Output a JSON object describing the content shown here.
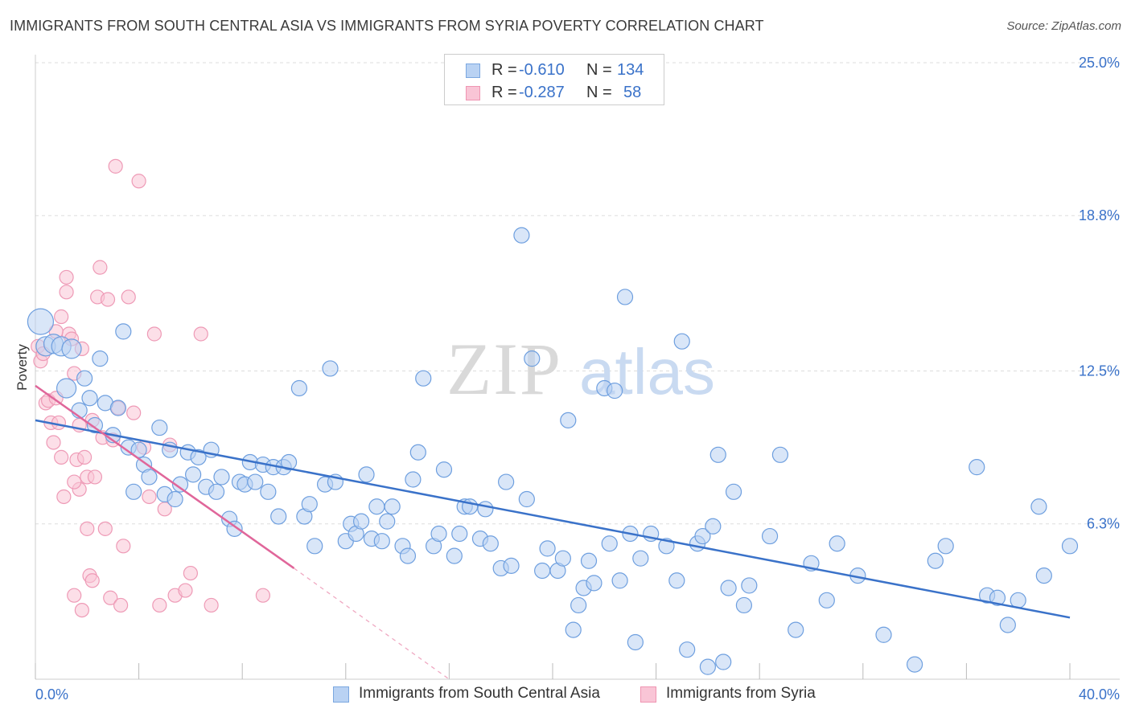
{
  "title": "IMMIGRANTS FROM SOUTH CENTRAL ASIA VS IMMIGRANTS FROM SYRIA POVERTY CORRELATION CHART",
  "source": "Source: ZipAtlas.com",
  "watermark": {
    "zip": "ZIP",
    "atlas": "atlas"
  },
  "legend": {
    "rows": [
      {
        "r_label": "R =",
        "r_value": "-0.610",
        "n_label": "N =",
        "n_value": "134",
        "fill": "#b9d2f3",
        "stroke": "#7ba7e0"
      },
      {
        "r_label": "R =",
        "r_value": "-0.287",
        "n_label": "N =",
        "n_value": "58",
        "fill": "#f9c5d6",
        "stroke": "#ef95b2"
      }
    ]
  },
  "bottom_legend": [
    {
      "label": "Immigrants from South Central Asia",
      "fill": "#b9d2f3",
      "stroke": "#7ba7e0"
    },
    {
      "label": "Immigrants from Syria",
      "fill": "#f9c5d6",
      "stroke": "#ef95b2"
    }
  ],
  "chart_data": {
    "type": "scatter",
    "ylabel": "Poverty",
    "xlim": [
      0,
      40
    ],
    "ylim": [
      0,
      25
    ],
    "x_tick_labels": [
      {
        "value": 0,
        "label": "0.0%"
      },
      {
        "value": 40,
        "label": "40.0%"
      }
    ],
    "y_tick_labels": [
      {
        "value": 6.3,
        "label": "6.3%"
      },
      {
        "value": 12.5,
        "label": "12.5%"
      },
      {
        "value": 18.8,
        "label": "18.8%"
      },
      {
        "value": 25.0,
        "label": "25.0%"
      }
    ],
    "colors": {
      "blue": "#3a72c9",
      "pink": "#e0669a",
      "blue_fill": "#b9d2f3",
      "pink_fill": "#f9c5d6"
    },
    "series": [
      {
        "name": "Immigrants from South Central Asia",
        "trend": {
          "x0": 0,
          "y0": 10.5,
          "x1": 40,
          "y1": 2.5
        },
        "points": [
          [
            0.2,
            14.5
          ],
          [
            0.4,
            13.5
          ],
          [
            0.7,
            13.6
          ],
          [
            1.0,
            13.5
          ],
          [
            1.2,
            11.8
          ],
          [
            1.4,
            13.4
          ],
          [
            1.7,
            10.9
          ],
          [
            1.9,
            12.2
          ],
          [
            2.1,
            11.4
          ],
          [
            2.3,
            10.3
          ],
          [
            2.5,
            13.0
          ],
          [
            2.7,
            11.2
          ],
          [
            3.0,
            9.9
          ],
          [
            3.2,
            11.0
          ],
          [
            3.4,
            14.1
          ],
          [
            3.6,
            9.4
          ],
          [
            3.8,
            7.6
          ],
          [
            4.0,
            9.3
          ],
          [
            4.2,
            8.7
          ],
          [
            4.4,
            8.2
          ],
          [
            4.8,
            10.2
          ],
          [
            5.0,
            7.5
          ],
          [
            5.2,
            9.3
          ],
          [
            5.4,
            7.3
          ],
          [
            5.6,
            7.9
          ],
          [
            5.9,
            9.2
          ],
          [
            6.1,
            8.3
          ],
          [
            6.3,
            9.0
          ],
          [
            6.6,
            7.8
          ],
          [
            6.8,
            9.3
          ],
          [
            7.0,
            7.6
          ],
          [
            7.2,
            8.2
          ],
          [
            7.5,
            6.5
          ],
          [
            7.7,
            6.1
          ],
          [
            7.9,
            8.0
          ],
          [
            8.1,
            7.9
          ],
          [
            8.3,
            8.8
          ],
          [
            8.5,
            8.0
          ],
          [
            8.8,
            8.7
          ],
          [
            9.0,
            7.6
          ],
          [
            9.2,
            8.6
          ],
          [
            9.4,
            6.6
          ],
          [
            9.6,
            8.6
          ],
          [
            9.8,
            8.8
          ],
          [
            10.2,
            11.8
          ],
          [
            10.4,
            6.6
          ],
          [
            10.6,
            7.1
          ],
          [
            10.8,
            5.4
          ],
          [
            11.2,
            7.9
          ],
          [
            11.4,
            12.6
          ],
          [
            11.6,
            8.0
          ],
          [
            12.0,
            5.6
          ],
          [
            12.2,
            6.3
          ],
          [
            12.4,
            5.9
          ],
          [
            12.6,
            6.4
          ],
          [
            12.8,
            8.3
          ],
          [
            13.0,
            5.7
          ],
          [
            13.2,
            7.0
          ],
          [
            13.4,
            5.6
          ],
          [
            13.6,
            6.4
          ],
          [
            13.8,
            7.0
          ],
          [
            14.2,
            5.4
          ],
          [
            14.4,
            5.0
          ],
          [
            14.6,
            8.1
          ],
          [
            14.8,
            9.2
          ],
          [
            15.0,
            12.2
          ],
          [
            15.4,
            5.4
          ],
          [
            15.6,
            5.9
          ],
          [
            15.8,
            8.5
          ],
          [
            16.2,
            5.0
          ],
          [
            16.4,
            5.9
          ],
          [
            16.6,
            7.0
          ],
          [
            16.8,
            7.0
          ],
          [
            17.2,
            5.7
          ],
          [
            17.4,
            6.9
          ],
          [
            17.6,
            5.5
          ],
          [
            18.0,
            4.5
          ],
          [
            18.2,
            8.0
          ],
          [
            18.4,
            4.6
          ],
          [
            18.8,
            18.0
          ],
          [
            19.0,
            7.3
          ],
          [
            19.2,
            13.0
          ],
          [
            19.6,
            4.4
          ],
          [
            19.8,
            5.3
          ],
          [
            20.2,
            4.4
          ],
          [
            20.4,
            4.9
          ],
          [
            20.6,
            10.5
          ],
          [
            20.8,
            2.0
          ],
          [
            21.0,
            3.0
          ],
          [
            21.2,
            3.7
          ],
          [
            21.4,
            4.8
          ],
          [
            21.6,
            3.9
          ],
          [
            22.0,
            11.8
          ],
          [
            22.2,
            5.5
          ],
          [
            22.4,
            11.7
          ],
          [
            22.6,
            4.0
          ],
          [
            22.8,
            15.5
          ],
          [
            23.0,
            5.9
          ],
          [
            23.2,
            1.5
          ],
          [
            23.4,
            4.9
          ],
          [
            23.8,
            5.9
          ],
          [
            24.4,
            5.4
          ],
          [
            24.8,
            4.0
          ],
          [
            25.0,
            13.7
          ],
          [
            25.2,
            1.2
          ],
          [
            25.6,
            5.5
          ],
          [
            25.8,
            5.8
          ],
          [
            26.0,
            0.5
          ],
          [
            26.2,
            6.2
          ],
          [
            26.4,
            9.1
          ],
          [
            26.6,
            0.7
          ],
          [
            26.8,
            3.7
          ],
          [
            27.0,
            7.6
          ],
          [
            27.4,
            3.0
          ],
          [
            27.6,
            3.8
          ],
          [
            28.4,
            5.8
          ],
          [
            28.8,
            9.1
          ],
          [
            29.4,
            2.0
          ],
          [
            30.0,
            4.7
          ],
          [
            30.6,
            3.2
          ],
          [
            31.0,
            5.5
          ],
          [
            31.8,
            4.2
          ],
          [
            32.8,
            1.8
          ],
          [
            34.0,
            0.6
          ],
          [
            34.8,
            4.8
          ],
          [
            35.2,
            5.4
          ],
          [
            36.4,
            8.6
          ],
          [
            36.8,
            3.4
          ],
          [
            37.2,
            3.3
          ],
          [
            37.6,
            2.2
          ],
          [
            38.0,
            3.2
          ],
          [
            38.8,
            7.0
          ],
          [
            39.0,
            4.2
          ],
          [
            40.0,
            5.4
          ]
        ]
      },
      {
        "name": "Immigrants from Syria",
        "trend": {
          "x0": 0,
          "y0": 11.9,
          "x1": 10,
          "y1": 4.5,
          "dash_x1": 16,
          "dash_y1": 0
        },
        "points": [
          [
            0.1,
            13.5
          ],
          [
            0.2,
            12.9
          ],
          [
            0.3,
            13.2
          ],
          [
            0.4,
            11.2
          ],
          [
            0.5,
            11.3
          ],
          [
            0.6,
            10.4
          ],
          [
            0.7,
            9.6
          ],
          [
            0.8,
            11.4
          ],
          [
            0.9,
            10.4
          ],
          [
            1.0,
            9.0
          ],
          [
            1.0,
            14.7
          ],
          [
            1.1,
            7.4
          ],
          [
            1.2,
            16.3
          ],
          [
            1.2,
            15.7
          ],
          [
            1.3,
            14.0
          ],
          [
            1.4,
            13.8
          ],
          [
            1.5,
            12.4
          ],
          [
            1.5,
            3.4
          ],
          [
            1.6,
            8.9
          ],
          [
            1.7,
            10.3
          ],
          [
            1.7,
            7.7
          ],
          [
            1.8,
            13.4
          ],
          [
            1.8,
            2.8
          ],
          [
            1.9,
            9.0
          ],
          [
            2.0,
            6.1
          ],
          [
            2.0,
            8.2
          ],
          [
            2.1,
            4.2
          ],
          [
            2.2,
            10.5
          ],
          [
            2.3,
            8.2
          ],
          [
            2.4,
            15.5
          ],
          [
            2.5,
            16.7
          ],
          [
            2.6,
            9.8
          ],
          [
            2.7,
            6.1
          ],
          [
            2.8,
            15.4
          ],
          [
            2.9,
            3.3
          ],
          [
            3.0,
            9.7
          ],
          [
            3.1,
            20.8
          ],
          [
            3.2,
            11.0
          ],
          [
            3.3,
            3.0
          ],
          [
            3.4,
            5.4
          ],
          [
            3.6,
            15.5
          ],
          [
            3.8,
            10.8
          ],
          [
            4.0,
            20.2
          ],
          [
            4.2,
            9.4
          ],
          [
            4.4,
            7.4
          ],
          [
            4.6,
            14.0
          ],
          [
            4.8,
            3.0
          ],
          [
            5.0,
            6.9
          ],
          [
            5.2,
            9.5
          ],
          [
            5.4,
            3.4
          ],
          [
            5.8,
            3.6
          ],
          [
            6.0,
            4.3
          ],
          [
            6.4,
            14.0
          ],
          [
            6.8,
            3.0
          ],
          [
            8.8,
            3.4
          ],
          [
            1.5,
            8.0
          ],
          [
            0.8,
            14.1
          ],
          [
            2.2,
            4.0
          ]
        ]
      }
    ]
  }
}
